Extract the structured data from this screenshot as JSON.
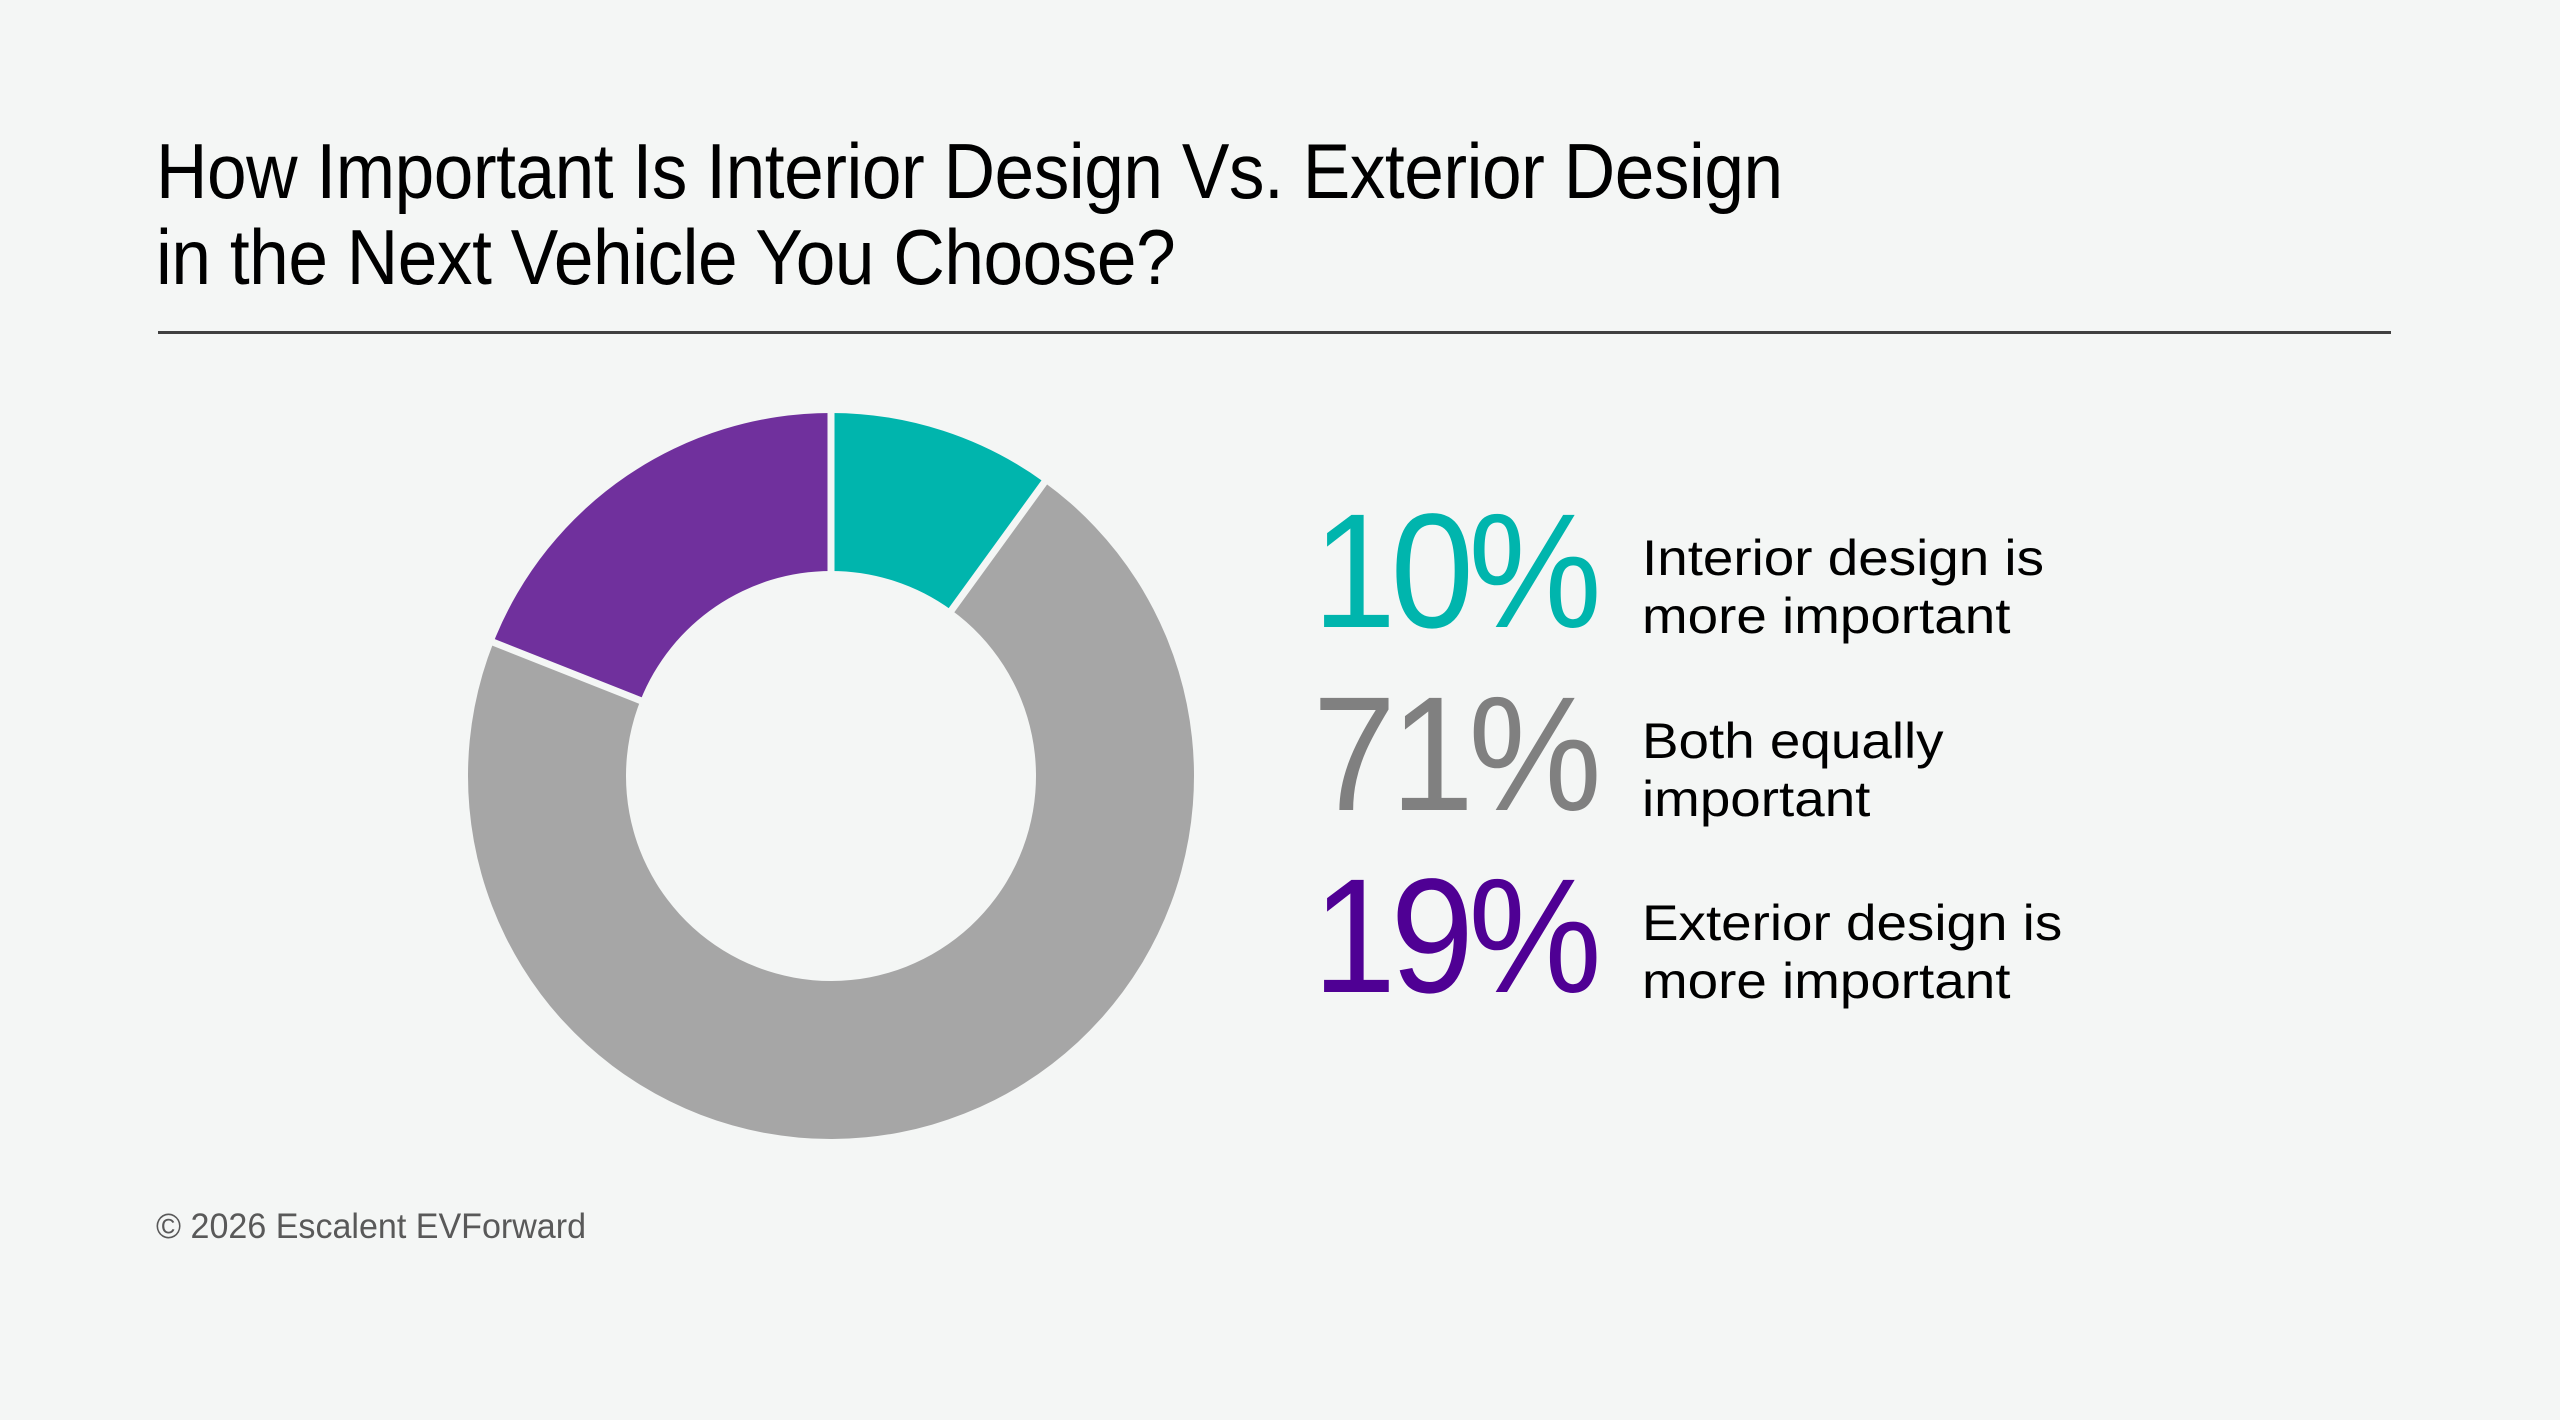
{
  "page": {
    "title_lines": [
      "How Important Is Interior Design Vs. Exterior Design",
      "in the Next Vehicle You Choose?"
    ],
    "footer": "© 2026 Escalent EVForward",
    "background_color": "#F4F6F5"
  },
  "stats": [
    {
      "value": "10%",
      "label_lines": [
        "Interior design is",
        "more important"
      ],
      "text_color": "#00B5AD"
    },
    {
      "value": "71%",
      "label_lines": [
        "Both equally",
        "important"
      ],
      "text_color": "#808080"
    },
    {
      "value": "19%",
      "label_lines": [
        "Exterior design is",
        "more important"
      ],
      "text_color": "#4F0094"
    }
  ],
  "chart_data": {
    "type": "pie",
    "subtype": "donut",
    "title": "How Important Is Interior Design Vs. Exterior Design in the Next Vehicle You Choose?",
    "categories": [
      "Interior design is more important",
      "Both equally important",
      "Exterior design is more important"
    ],
    "values": [
      10,
      71,
      19
    ],
    "unit": "%",
    "colors": [
      "#00B5AD",
      "#A6A6A6",
      "#70309D"
    ],
    "start_angle_deg": 0,
    "direction": "clockwise",
    "legend_position": "right",
    "data_labels": [
      "10%",
      "71%",
      "19%"
    ],
    "source": "© 2026 Escalent EVForward"
  }
}
